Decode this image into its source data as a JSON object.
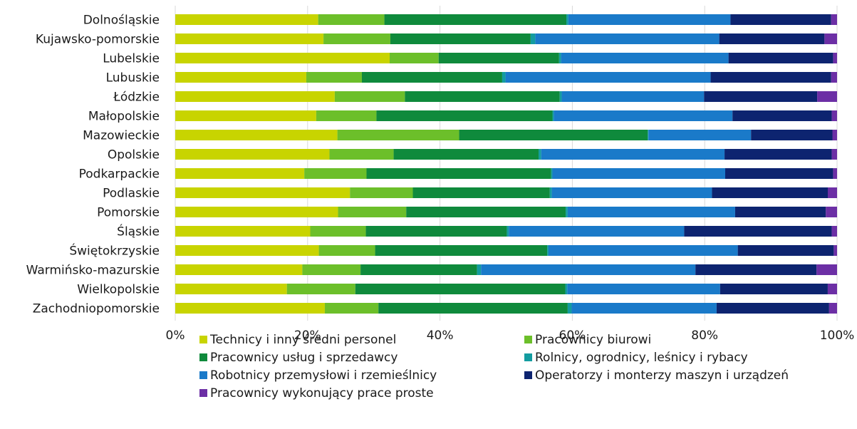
{
  "chart_data": {
    "type": "bar",
    "orientation": "horizontal",
    "stacked": "percent",
    "title": "",
    "xlabel": "",
    "ylabel": "",
    "xlim": [
      0,
      100
    ],
    "x_ticks": [
      "0%",
      "20%",
      "40%",
      "60%",
      "80%",
      "100%"
    ],
    "grid": true,
    "legend_position": "bottom",
    "categories": [
      "Dolnośląskie",
      "Kujawsko-pomorskie",
      "Lubelskie",
      "Lubuskie",
      "Łódzkie",
      "Małopolskie",
      "Mazowieckie",
      "Opolskie",
      "Podkarpackie",
      "Podlaskie",
      "Pomorskie",
      "Śląskie",
      "Świętokrzyskie",
      "Warmińsko-mazurskie",
      "Wielkopolskie",
      "Zachodniopomorskie"
    ],
    "series": [
      {
        "name": "Technicy i inny średni personel",
        "color": "#c8d400",
        "values": [
          21.6,
          22.4,
          32.4,
          19.8,
          24.1,
          21.3,
          24.5,
          23.3,
          19.5,
          26.4,
          24.6,
          20.4,
          21.7,
          19.2,
          16.8,
          22.6
        ]
      },
      {
        "name": "Pracownicy biurowi",
        "color": "#6cbf2a",
        "values": [
          10.0,
          10.1,
          7.4,
          8.4,
          10.6,
          9.1,
          18.4,
          9.7,
          9.4,
          9.5,
          10.3,
          8.4,
          8.5,
          8.8,
          10.3,
          8.1
        ]
      },
      {
        "name": "Pracownicy usług i sprzedawcy",
        "color": "#0f8a3c",
        "values": [
          27.5,
          21.2,
          18.2,
          21.2,
          23.4,
          26.6,
          28.5,
          21.9,
          27.9,
          20.7,
          24.1,
          21.3,
          26.0,
          17.6,
          31.6,
          28.6
        ]
      },
      {
        "name": "Rolnicy, ogrodnicy, leśnicy i rybacy",
        "color": "#139ca0",
        "values": [
          0.3,
          0.7,
          0.3,
          0.5,
          0.3,
          0.2,
          0.1,
          0.4,
          0.2,
          0.3,
          0.3,
          0.3,
          0.2,
          0.6,
          0.3,
          0.6
        ]
      },
      {
        "name": "Robotnicy przemysłowi i rzemieślnicy",
        "color": "#1a7ac9",
        "values": [
          24.5,
          27.8,
          25.3,
          31.0,
          21.5,
          27.0,
          15.5,
          27.7,
          26.1,
          24.2,
          25.3,
          26.5,
          28.6,
          32.4,
          23.0,
          21.9
        ]
      },
      {
        "name": "Operatorzy i monterzy maszyn i urządzeń",
        "color": "#0d2470",
        "values": [
          15.2,
          15.9,
          15.8,
          18.2,
          17.1,
          15.0,
          12.3,
          16.2,
          16.3,
          17.5,
          13.7,
          22.3,
          14.5,
          18.3,
          16.2,
          17.0
        ]
      },
      {
        "name": "Pracownicy wykonujący prace proste",
        "color": "#6c2fa5",
        "values": [
          0.9,
          1.9,
          0.6,
          0.9,
          3.0,
          0.8,
          0.7,
          0.8,
          0.6,
          1.4,
          1.7,
          0.8,
          0.5,
          3.1,
          1.4,
          1.2
        ]
      }
    ]
  }
}
